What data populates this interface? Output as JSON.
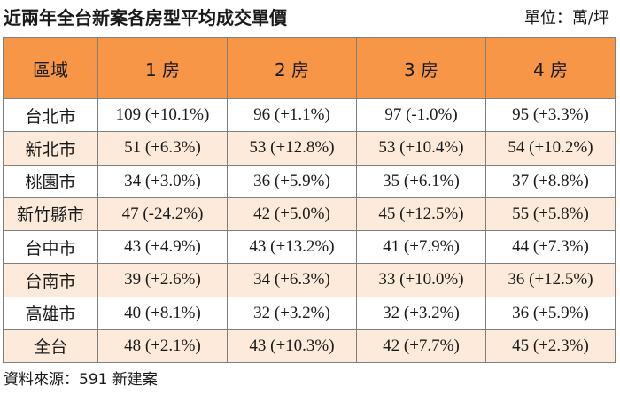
{
  "title": "近兩年全台新案各房型平均成交單價",
  "unit": "單位：萬/坪",
  "source": "資料來源：591 新建案",
  "colors": {
    "header_bg": "#f79646",
    "even_row_bg": "#fdeada",
    "odd_row_bg": "#ffffff",
    "border": "#7f7f7f"
  },
  "chart_data": {
    "type": "table",
    "columns": [
      "區域",
      "1 房",
      "2 房",
      "3 房",
      "4 房"
    ],
    "rows": [
      {
        "region": "台北市",
        "cells": [
          "109 (+10.1%)",
          "96 (+1.1%)",
          "97 (-1.0%)",
          "95 (+3.3%)"
        ]
      },
      {
        "region": "新北市",
        "cells": [
          "51 (+6.3%)",
          "53 (+12.8%)",
          "53 (+10.4%)",
          "54 (+10.2%)"
        ]
      },
      {
        "region": "桃園市",
        "cells": [
          "34 (+3.0%)",
          "36 (+5.9%)",
          "35 (+6.1%)",
          "37 (+8.8%)"
        ]
      },
      {
        "region": "新竹縣市",
        "cells": [
          "47 (-24.2%)",
          "42 (+5.0%)",
          "45 (+12.5%)",
          "55 (+5.8%)"
        ]
      },
      {
        "region": "台中市",
        "cells": [
          "43 (+4.9%)",
          "43 (+13.2%)",
          "41 (+7.9%)",
          "44 (+7.3%)"
        ]
      },
      {
        "region": "台南市",
        "cells": [
          "39 (+2.6%)",
          "34 (+6.3%)",
          "33 (+10.0%)",
          "36 (+12.5%)"
        ]
      },
      {
        "region": "高雄市",
        "cells": [
          "40 (+8.1%)",
          "32 (+3.2%)",
          "32 (+3.2%)",
          "36 (+5.9%)"
        ]
      },
      {
        "region": "全台",
        "cells": [
          "48 (+2.1%)",
          "43 (+10.3%)",
          "42 (+7.7%)",
          "45 (+2.3%)"
        ]
      }
    ]
  }
}
